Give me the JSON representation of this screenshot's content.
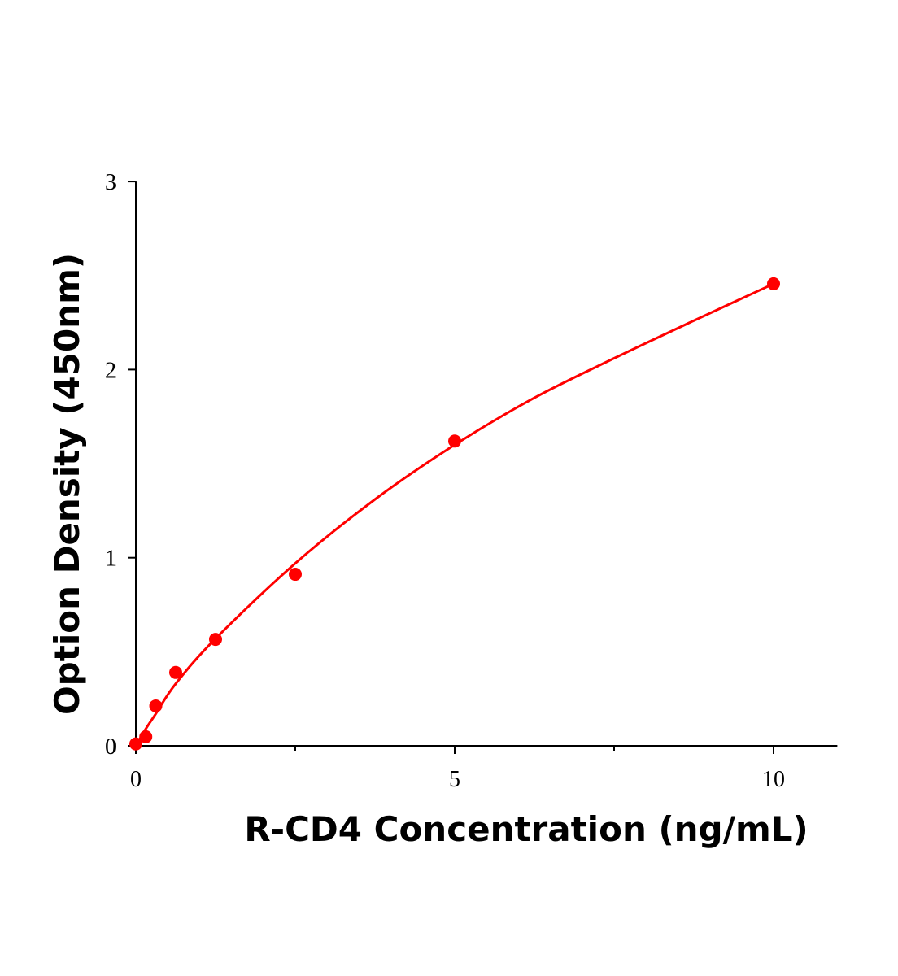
{
  "chart_data": {
    "type": "scatter",
    "title": "",
    "xlabel": "R-CD4 Concentration (ng/mL)",
    "ylabel": "Option Density (450nm)",
    "xlim": [
      0,
      11
    ],
    "ylim": [
      0,
      3
    ],
    "x_ticks": [
      0,
      5,
      10
    ],
    "x_tick_labels": [
      "0",
      "5",
      "10"
    ],
    "x_minor_ticks": [
      2.5,
      7.5
    ],
    "y_ticks": [
      0,
      1,
      2,
      3
    ],
    "y_tick_labels": [
      "0",
      "1",
      "2",
      "3"
    ],
    "grid": false,
    "legend": "none",
    "color": "#ff0000",
    "series": [
      {
        "points": [
          {
            "x": 0,
            "y": 0.01
          },
          {
            "x": 0.156,
            "y": 0.048
          },
          {
            "x": 0.3125,
            "y": 0.212
          },
          {
            "x": 0.625,
            "y": 0.39
          },
          {
            "x": 1.25,
            "y": 0.566
          },
          {
            "x": 2.5,
            "y": 0.912
          },
          {
            "x": 5,
            "y": 1.62
          },
          {
            "x": 10,
            "y": 2.456
          }
        ],
        "fit_curve": [
          {
            "x": 0,
            "y": 0
          },
          {
            "x": 0.156,
            "y": 0.09
          },
          {
            "x": 0.3125,
            "y": 0.17
          },
          {
            "x": 0.625,
            "y": 0.33
          },
          {
            "x": 1.25,
            "y": 0.57
          },
          {
            "x": 2.5,
            "y": 0.97
          },
          {
            "x": 3.75,
            "y": 1.31
          },
          {
            "x": 5,
            "y": 1.6
          },
          {
            "x": 6.25,
            "y": 1.85
          },
          {
            "x": 7.5,
            "y": 2.06
          },
          {
            "x": 8.75,
            "y": 2.26
          },
          {
            "x": 10,
            "y": 2.456
          }
        ]
      }
    ]
  }
}
